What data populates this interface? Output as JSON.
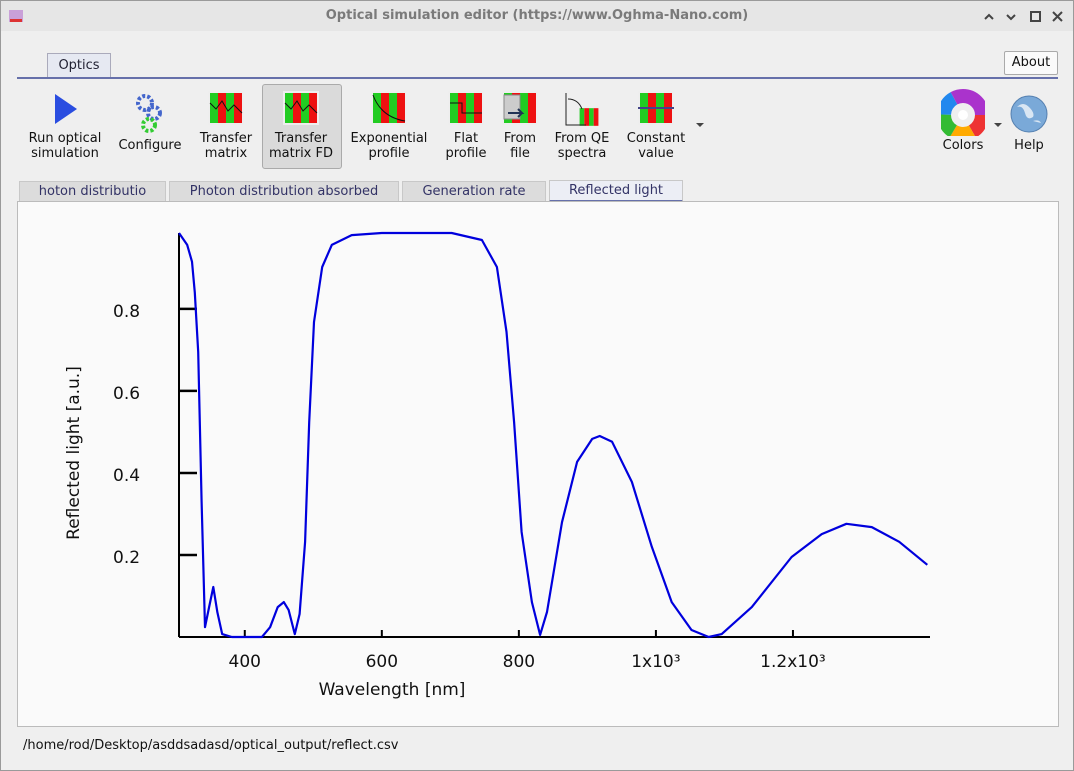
{
  "window": {
    "title": "Optical simulation editor (https://www.Oghma-Nano.com)"
  },
  "tabs": [
    "Optics"
  ],
  "about": "About",
  "toolbar": [
    {
      "label": [
        "Run optical",
        "simulation"
      ]
    },
    {
      "label": [
        "Configure"
      ]
    },
    {
      "label": [
        "Transfer",
        "matrix"
      ]
    },
    {
      "label": [
        "Transfer",
        "matrix FD"
      ]
    },
    {
      "label": [
        "Exponential",
        "profile"
      ]
    },
    {
      "label": [
        "Flat",
        "profile"
      ]
    },
    {
      "label": [
        "From",
        "file"
      ]
    },
    {
      "label": [
        "From QE",
        "spectra"
      ]
    },
    {
      "label": [
        "Constant",
        "value"
      ]
    }
  ],
  "right_toolbar": [
    {
      "label": [
        "Colors"
      ]
    },
    {
      "label": [
        "Help"
      ]
    }
  ],
  "subtabs": [
    "hoton distributio",
    "Photon distribution absorbed",
    "Generation rate",
    "Reflected light"
  ],
  "chart_data": {
    "type": "line",
    "xlabel": "Wavelength [nm]",
    "ylabel": "Reflected light [a.u.]",
    "color": "#0000dd",
    "xlim": [
      304,
      1400
    ],
    "ylim": [
      0,
      0.985
    ],
    "xticks": [
      400,
      600,
      800,
      {
        "value": 1000,
        "label": "1x10³"
      },
      {
        "value": 1200,
        "label": "1.2x10³"
      }
    ],
    "yticks": [
      0.2,
      0.4,
      0.6,
      0.8
    ],
    "x": [
      304,
      316,
      323,
      327,
      332,
      337,
      342,
      348,
      354,
      360,
      367,
      381,
      403,
      425,
      437,
      448,
      457,
      464,
      473,
      480,
      488,
      494,
      501,
      513,
      527,
      556,
      600,
      702,
      746,
      768,
      782,
      793,
      804,
      819,
      831,
      841,
      863,
      885,
      907,
      918,
      936,
      965,
      994,
      1023,
      1052,
      1077,
      1096,
      1140,
      1198,
      1242,
      1278,
      1315,
      1355,
      1396
    ],
    "values": [
      0.985,
      0.956,
      0.915,
      0.84,
      0.695,
      0.33,
      0.024,
      0.073,
      0.122,
      0.06,
      0.007,
      0,
      0,
      0,
      0.024,
      0.073,
      0.085,
      0.066,
      0.007,
      0.056,
      0.232,
      0.524,
      0.768,
      0.902,
      0.956,
      0.98,
      0.985,
      0.985,
      0.968,
      0.902,
      0.744,
      0.524,
      0.256,
      0.085,
      0.005,
      0.061,
      0.28,
      0.427,
      0.483,
      0.49,
      0.476,
      0.378,
      0.22,
      0.085,
      0.017,
      0,
      0.007,
      0.073,
      0.195,
      0.251,
      0.276,
      0.268,
      0.232,
      0.176
    ]
  },
  "status": "/home/rod/Desktop/asddsadasd/optical_output/reflect.csv"
}
